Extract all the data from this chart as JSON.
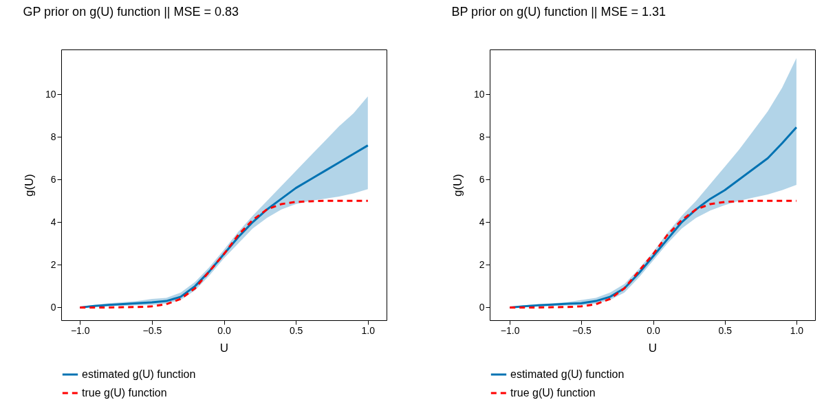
{
  "chart_data": [
    {
      "type": "line",
      "title": "GP prior on g(U) function || MSE = 0.83",
      "xlabel": "U",
      "ylabel": "g(U)",
      "xlim": [
        -1.13,
        1.13
      ],
      "ylim": [
        -0.6,
        12.1
      ],
      "xticks": [
        {
          "value": -1,
          "label": "−1.0"
        },
        {
          "value": -0.5,
          "label": "−0.5"
        },
        {
          "value": 0,
          "label": "0.0"
        },
        {
          "value": 0.5,
          "label": "0.5"
        },
        {
          "value": 1,
          "label": "1.0"
        }
      ],
      "yticks": [
        0,
        2,
        4,
        6,
        8,
        10
      ],
      "legend": "bottom",
      "x": [
        -1.0,
        -0.9,
        -0.8,
        -0.7,
        -0.6,
        -0.5,
        -0.4,
        -0.3,
        -0.2,
        -0.1,
        0.0,
        0.1,
        0.2,
        0.3,
        0.4,
        0.5,
        0.6,
        0.7,
        0.8,
        0.9,
        1.0
      ],
      "series": [
        {
          "name": "estimated g(U) function",
          "color": "#0072b2",
          "line_style": "solid",
          "values": [
            0,
            0.07,
            0.12,
            0.16,
            0.2,
            0.24,
            0.3,
            0.5,
            1.0,
            1.7,
            2.5,
            3.3,
            4.0,
            4.6,
            5.1,
            5.6,
            6.0,
            6.4,
            6.8,
            7.2,
            7.6
          ],
          "lower": [
            0,
            0.03,
            0.06,
            0.08,
            0.1,
            0.12,
            0.18,
            0.35,
            0.8,
            1.5,
            2.3,
            3.0,
            3.7,
            4.2,
            4.6,
            4.85,
            5.0,
            5.1,
            5.2,
            5.35,
            5.55
          ],
          "upper": [
            0.03,
            0.12,
            0.2,
            0.25,
            0.3,
            0.4,
            0.45,
            0.7,
            1.2,
            1.9,
            2.7,
            3.55,
            4.3,
            5.0,
            5.7,
            6.4,
            7.1,
            7.8,
            8.5,
            9.1,
            9.9
          ]
        },
        {
          "name": "true g(U) function",
          "color": "#ff0000",
          "line_style": "dashed",
          "values": [
            0,
            0,
            0,
            0.01,
            0.02,
            0.05,
            0.15,
            0.4,
            0.9,
            1.7,
            2.5,
            3.4,
            4.1,
            4.6,
            4.85,
            4.95,
            4.98,
            5,
            5,
            5,
            5
          ]
        }
      ]
    },
    {
      "type": "line",
      "title": "BP prior on g(U) function || MSE = 1.31",
      "xlabel": "U",
      "ylabel": "g(U)",
      "xlim": [
        -1.14,
        1.13
      ],
      "ylim": [
        -0.6,
        12.1
      ],
      "xticks": [
        {
          "value": -1,
          "label": "−1.0"
        },
        {
          "value": -0.5,
          "label": "−0.5"
        },
        {
          "value": 0,
          "label": "0.0"
        },
        {
          "value": 0.5,
          "label": "0.5"
        },
        {
          "value": 1,
          "label": "1.0"
        }
      ],
      "yticks": [
        0,
        2,
        4,
        6,
        8,
        10
      ],
      "legend": "bottom",
      "x": [
        -1.0,
        -0.9,
        -0.8,
        -0.7,
        -0.6,
        -0.5,
        -0.4,
        -0.3,
        -0.2,
        -0.1,
        0.0,
        0.1,
        0.2,
        0.3,
        0.4,
        0.5,
        0.6,
        0.7,
        0.8,
        0.9,
        1.0
      ],
      "series": [
        {
          "name": "estimated g(U) function",
          "color": "#0072b2",
          "line_style": "solid",
          "values": [
            0,
            0.05,
            0.1,
            0.13,
            0.17,
            0.2,
            0.3,
            0.5,
            0.9,
            1.6,
            2.4,
            3.2,
            4.0,
            4.6,
            5.1,
            5.5,
            6.0,
            6.5,
            7.0,
            7.7,
            8.45
          ],
          "lower": [
            0,
            0.02,
            0.05,
            0.07,
            0.09,
            0.1,
            0.18,
            0.35,
            0.7,
            1.4,
            2.2,
            3.0,
            3.7,
            4.2,
            4.55,
            4.8,
            5.0,
            5.15,
            5.3,
            5.5,
            5.75
          ],
          "upper": [
            0.03,
            0.1,
            0.16,
            0.2,
            0.25,
            0.35,
            0.45,
            0.7,
            1.1,
            1.8,
            2.6,
            3.5,
            4.3,
            5.0,
            5.8,
            6.6,
            7.4,
            8.3,
            9.2,
            10.3,
            11.7
          ]
        },
        {
          "name": "true g(U) function",
          "color": "#ff0000",
          "line_style": "dashed",
          "values": [
            0,
            0,
            0,
            0.01,
            0.02,
            0.05,
            0.15,
            0.4,
            0.9,
            1.7,
            2.5,
            3.4,
            4.1,
            4.6,
            4.85,
            4.95,
            4.98,
            5,
            5,
            5,
            5
          ]
        }
      ]
    }
  ]
}
